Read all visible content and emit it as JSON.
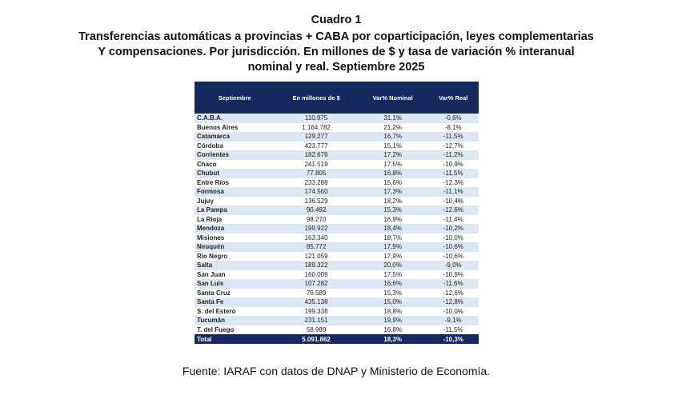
{
  "title": {
    "heading": "Cuadro 1",
    "lines": [
      "Transferencias automáticas a provincias + CABA por coparticipación, leyes complementarias",
      "Y compensaciones. Por jurisdicción. En millones de $ y tasa de variación % interanual",
      "nominal y real.  Septiembre 2025"
    ]
  },
  "table": {
    "headers": [
      "Septiembre",
      "En millones de $",
      "Var% Nominal",
      "Var% Real"
    ],
    "rows": [
      [
        "C.A.B.A.",
        "110.975",
        "31,1%",
        "-0,6%"
      ],
      [
        "Buenos Aires",
        "1.164.782",
        "21,2%",
        "-8,1%"
      ],
      [
        "Catamarca",
        "129.277",
        "16,7%",
        "-11,5%"
      ],
      [
        "Córdoba",
        "423.777",
        "15,1%",
        "-12,7%"
      ],
      [
        "Corrientes",
        "182.676",
        "17,2%",
        "-11,2%"
      ],
      [
        "Chaco",
        "241.519",
        "17,5%",
        "-10,9%"
      ],
      [
        "Chubut",
        "77.805",
        "16,8%",
        "-11,5%"
      ],
      [
        "Entre Ríos",
        "233.288",
        "15,6%",
        "-12,3%"
      ],
      [
        "Formosa",
        "174.560",
        "17,3%",
        "-11,1%"
      ],
      [
        "Jujuy",
        "136.529",
        "18,2%",
        "-10,4%"
      ],
      [
        "La Pampa",
        "90.492",
        "15,3%",
        "-12,6%"
      ],
      [
        "La Rioja",
        "98.270",
        "16,9%",
        "-11,4%"
      ],
      [
        "Mendoza",
        "199.922",
        "18,4%",
        "-10,2%"
      ],
      [
        "Misiones",
        "163.340",
        "18,7%",
        "-10,0%"
      ],
      [
        "Neuquén",
        "85.772",
        "17,9%",
        "-10,6%"
      ],
      [
        "Río Negro",
        "121.059",
        "17,9%",
        "-10,6%"
      ],
      [
        "Salta",
        "189.322",
        "20,0%",
        "-9,0%"
      ],
      [
        "San Juan",
        "160.009",
        "17,5%",
        "-10,9%"
      ],
      [
        "San Luis",
        "107.282",
        "16,6%",
        "-11,6%"
      ],
      [
        "Santa Cruz",
        "76.589",
        "15,3%",
        "-12,6%"
      ],
      [
        "Santa Fe",
        "435.138",
        "15,0%",
        "-12,8%"
      ],
      [
        "S. del Estero",
        "199.338",
        "18,8%",
        "-10,0%"
      ],
      [
        "Tucumán",
        "231.151",
        "19,9%",
        "-9,1%"
      ],
      [
        "T. del Fuego",
        "58.989",
        "16,8%",
        "-11,5%"
      ]
    ],
    "total": [
      "Total",
      "5.091.862",
      "18,3%",
      "-10,3%"
    ]
  },
  "source": "Fuente: IARAF con datos de DNAP y Ministerio de Economía.",
  "colors": {
    "header_bg": "#14295e",
    "stripe": "#dde7f3"
  }
}
